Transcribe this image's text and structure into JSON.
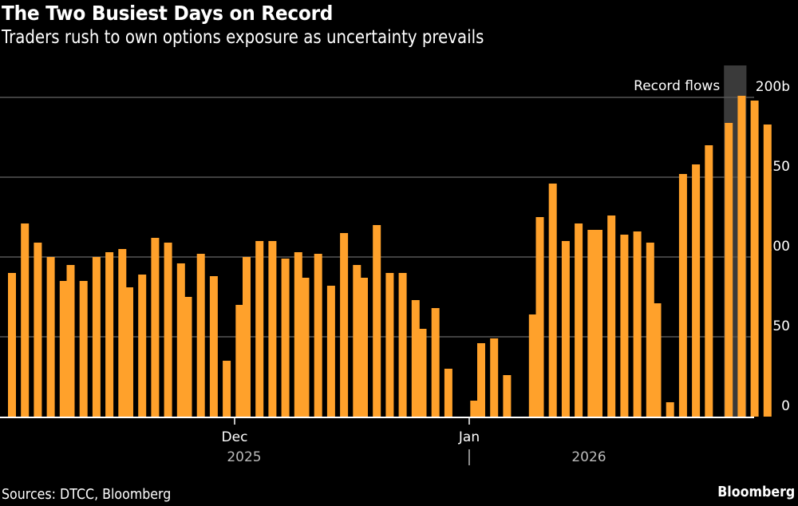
{
  "header": {
    "title": "The Two Busiest Days on Record",
    "subtitle": "Traders rush to own options exposure as uncertainty prevails"
  },
  "footer": {
    "source": "Sources: DTCC, Bloomberg",
    "brand": "Bloomberg"
  },
  "colors": {
    "bar": "#ffa12b",
    "background": "#000000",
    "gridline": "#555555",
    "highlight": "#3a3a3a"
  },
  "chart_data": {
    "type": "bar",
    "title": "The Two Busiest Days on Record",
    "subtitle": "Traders rush to own options exposure as uncertainty prevails",
    "xlabel": "",
    "ylabel": "",
    "unit_suffix": "b",
    "ylim": [
      0,
      200
    ],
    "yticks": [
      0,
      50,
      100,
      150,
      200
    ],
    "ytick_labels": [
      "0",
      "50",
      "100",
      "150",
      "200b"
    ],
    "grid": true,
    "y_axis_side": "right",
    "x_month_labels": [
      {
        "label": "Dec",
        "year": "2025",
        "after_week": 4
      },
      {
        "label": "Jan",
        "year": "2026",
        "after_week": 8
      }
    ],
    "annotation": {
      "text": "Record flows",
      "highlight_week": 12,
      "highlight_day": 1
    },
    "weeks": [
      [
        90,
        121,
        109,
        100,
        85
      ],
      [
        95,
        85,
        100,
        103,
        105
      ],
      [
        81,
        89,
        112,
        109,
        96
      ],
      [
        75,
        102,
        88,
        35,
        70
      ],
      [
        100,
        110,
        110,
        99,
        103
      ],
      [
        87,
        102,
        82,
        115,
        95
      ],
      [
        87,
        120,
        90,
        90,
        73
      ],
      [
        55,
        68,
        30,
        null,
        10
      ],
      [
        46,
        49,
        26,
        null,
        64
      ],
      [
        125,
        146,
        110,
        121,
        117
      ],
      [
        117,
        126,
        114,
        116,
        109
      ],
      [
        71,
        9,
        152,
        158,
        170
      ],
      [
        null,
        184,
        201,
        198,
        183
      ]
    ]
  }
}
